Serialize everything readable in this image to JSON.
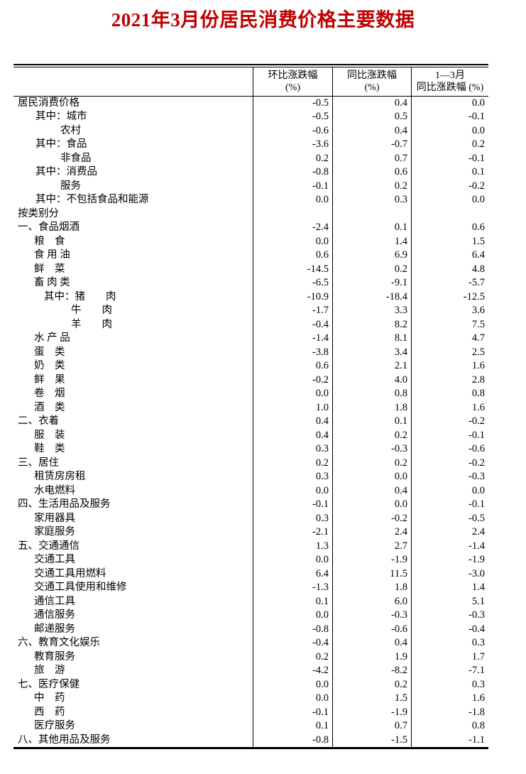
{
  "title": "2021年3月份居民消费价格主要数据",
  "colors": {
    "title_accent": "#c00000",
    "text": "#000000",
    "border": "#000000"
  },
  "table": {
    "columns": [
      {
        "line1": "",
        "line2": ""
      },
      {
        "line1": "环比涨跌幅",
        "line2": "(%)"
      },
      {
        "line1": "同比涨跌幅",
        "line2": "(%)"
      },
      {
        "line1": "1—3月",
        "line2": "同比涨跌幅 (%)"
      }
    ],
    "rows": [
      {
        "label": "居民消费价格",
        "indent": 0,
        "mom": "-0.5",
        "yoy": "0.4",
        "ytd": "0.0"
      },
      {
        "label": "其中：城市",
        "indent": 1,
        "mom": "-0.5",
        "yoy": "0.5",
        "ytd": "-0.1"
      },
      {
        "label": "农村",
        "indent": 2,
        "mom": "-0.6",
        "yoy": "0.4",
        "ytd": "0.0"
      },
      {
        "label": "其中：食品",
        "indent": 1,
        "mom": "-3.6",
        "yoy": "-0.7",
        "ytd": "0.2"
      },
      {
        "label": "非食品",
        "indent": 2,
        "mom": "0.2",
        "yoy": "0.7",
        "ytd": "-0.1"
      },
      {
        "label": "其中：消费品",
        "indent": 1,
        "mom": "-0.8",
        "yoy": "0.6",
        "ytd": "0.1"
      },
      {
        "label": "服务",
        "indent": 2,
        "mom": "-0.1",
        "yoy": "0.2",
        "ytd": "-0.2"
      },
      {
        "label": "其中：不包括食品和能源",
        "indent": 1,
        "mom": "0.0",
        "yoy": "0.3",
        "ytd": "0.0"
      },
      {
        "label": "按类别分",
        "indent": 0,
        "mom": "",
        "yoy": "",
        "ytd": ""
      },
      {
        "label": "一、食品烟酒",
        "indent": 0,
        "mom": "-2.4",
        "yoy": "0.1",
        "ytd": "0.6"
      },
      {
        "label": "粮　食",
        "indent": 3,
        "mom": "0.0",
        "yoy": "1.4",
        "ytd": "1.5"
      },
      {
        "label": "食 用 油",
        "indent": 3,
        "mom": "0.6",
        "yoy": "6.9",
        "ytd": "6.4"
      },
      {
        "label": "鲜　菜",
        "indent": 3,
        "mom": "-14.5",
        "yoy": "0.2",
        "ytd": "4.8"
      },
      {
        "label": "畜 肉 类",
        "indent": 3,
        "mom": "-6.5",
        "yoy": "-9.1",
        "ytd": "-5.7"
      },
      {
        "label": "其中：猪　　肉",
        "indent": 4,
        "mom": "-10.9",
        "yoy": "-18.4",
        "ytd": "-12.5"
      },
      {
        "label": "牛　　肉",
        "indent": 5,
        "mom": "-1.7",
        "yoy": "3.3",
        "ytd": "3.6"
      },
      {
        "label": "羊　　肉",
        "indent": 5,
        "mom": "-0.4",
        "yoy": "8.2",
        "ytd": "7.5"
      },
      {
        "label": "水 产 品",
        "indent": 3,
        "mom": "-1.4",
        "yoy": "8.1",
        "ytd": "4.7"
      },
      {
        "label": "蛋　类",
        "indent": 3,
        "mom": "-3.8",
        "yoy": "3.4",
        "ytd": "2.5"
      },
      {
        "label": "奶　类",
        "indent": 3,
        "mom": "0.6",
        "yoy": "2.1",
        "ytd": "1.6"
      },
      {
        "label": "鲜　果",
        "indent": 3,
        "mom": "-0.2",
        "yoy": "4.0",
        "ytd": "2.8"
      },
      {
        "label": "卷　烟",
        "indent": 3,
        "mom": "0.0",
        "yoy": "0.8",
        "ytd": "0.8"
      },
      {
        "label": "酒　类",
        "indent": 3,
        "mom": "1.0",
        "yoy": "1.8",
        "ytd": "1.6"
      },
      {
        "label": "二、衣着",
        "indent": 0,
        "mom": "0.4",
        "yoy": "0.1",
        "ytd": "-0.2"
      },
      {
        "label": "服　装",
        "indent": 3,
        "mom": "0.4",
        "yoy": "0.2",
        "ytd": "-0.1"
      },
      {
        "label": "鞋　类",
        "indent": 3,
        "mom": "0.3",
        "yoy": "-0.3",
        "ytd": "-0.6"
      },
      {
        "label": "三、居住",
        "indent": 0,
        "mom": "0.2",
        "yoy": "0.2",
        "ytd": "-0.2"
      },
      {
        "label": "租赁房房租",
        "indent": 3,
        "mom": "0.3",
        "yoy": "0.0",
        "ytd": "-0.3"
      },
      {
        "label": "水电燃料",
        "indent": 3,
        "mom": "0.0",
        "yoy": "0.4",
        "ytd": "0.0"
      },
      {
        "label": "四、生活用品及服务",
        "indent": 0,
        "mom": "-0.1",
        "yoy": "0.0",
        "ytd": "-0.1"
      },
      {
        "label": "家用器具",
        "indent": 3,
        "mom": "0.3",
        "yoy": "-0.2",
        "ytd": "-0.5"
      },
      {
        "label": "家庭服务",
        "indent": 3,
        "mom": "-2.1",
        "yoy": "2.4",
        "ytd": "2.4"
      },
      {
        "label": "五、交通通信",
        "indent": 0,
        "mom": "1.3",
        "yoy": "2.7",
        "ytd": "-1.4"
      },
      {
        "label": "交通工具",
        "indent": 3,
        "mom": "0.0",
        "yoy": "-1.9",
        "ytd": "-1.9"
      },
      {
        "label": "交通工具用燃料",
        "indent": 3,
        "mom": "6.4",
        "yoy": "11.5",
        "ytd": "-3.0"
      },
      {
        "label": "交通工具使用和维修",
        "indent": 3,
        "mom": "-1.3",
        "yoy": "1.8",
        "ytd": "1.4"
      },
      {
        "label": "通信工具",
        "indent": 3,
        "mom": "0.1",
        "yoy": "6.0",
        "ytd": "5.1"
      },
      {
        "label": "通信服务",
        "indent": 3,
        "mom": "0.0",
        "yoy": "-0.3",
        "ytd": "-0.3"
      },
      {
        "label": "邮递服务",
        "indent": 3,
        "mom": "-0.8",
        "yoy": "-0.6",
        "ytd": "-0.4"
      },
      {
        "label": "六、教育文化娱乐",
        "indent": 0,
        "mom": "-0.4",
        "yoy": "0.4",
        "ytd": "0.3"
      },
      {
        "label": "教育服务",
        "indent": 3,
        "mom": "0.2",
        "yoy": "1.9",
        "ytd": "1.7"
      },
      {
        "label": "旅　游",
        "indent": 3,
        "mom": "-4.2",
        "yoy": "-8.2",
        "ytd": "-7.1"
      },
      {
        "label": "七、医疗保健",
        "indent": 0,
        "mom": "0.0",
        "yoy": "0.2",
        "ytd": "0.3"
      },
      {
        "label": "中　药",
        "indent": 3,
        "mom": "0.0",
        "yoy": "1.5",
        "ytd": "1.6"
      },
      {
        "label": "西　药",
        "indent": 3,
        "mom": "-0.1",
        "yoy": "-1.9",
        "ytd": "-1.8"
      },
      {
        "label": "医疗服务",
        "indent": 3,
        "mom": "0.1",
        "yoy": "0.7",
        "ytd": "0.8"
      },
      {
        "label": "八、其他用品及服务",
        "indent": 0,
        "mom": "-0.8",
        "yoy": "-1.5",
        "ytd": "-1.1"
      }
    ]
  }
}
